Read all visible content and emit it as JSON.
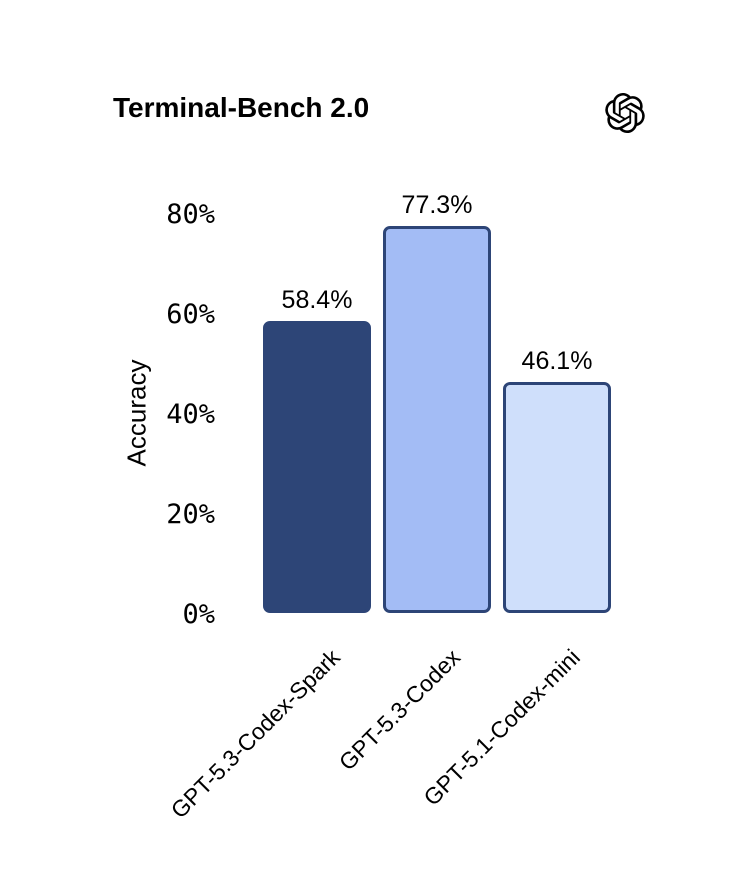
{
  "header": {
    "title": "Terminal-Bench 2.0",
    "logo_icon": "openai-logo"
  },
  "chart_data": {
    "type": "bar",
    "title": "Terminal-Bench 2.0",
    "xlabel": "",
    "ylabel": "Accuracy",
    "ylim": [
      0,
      80
    ],
    "yticks": [
      0,
      20,
      40,
      60,
      80
    ],
    "ytick_labels": [
      "0%",
      "20%",
      "40%",
      "60%",
      "80%"
    ],
    "categories": [
      "GPT-5.3-Codex-Spark",
      "GPT-5.3-Codex",
      "GPT-5.1-Codex-mini"
    ],
    "values": [
      58.4,
      77.3,
      46.1
    ],
    "value_labels": [
      "58.4%",
      "77.3%",
      "46.1%"
    ],
    "bar_colors": [
      "#2d4577",
      "#a3bcf5",
      "#cfdffb"
    ],
    "bar_border_color": "#2d4577",
    "text_color": "#000000",
    "background_color": "#ffffff",
    "grid": false,
    "legend": null,
    "xtick_rotation_deg": 45
  }
}
